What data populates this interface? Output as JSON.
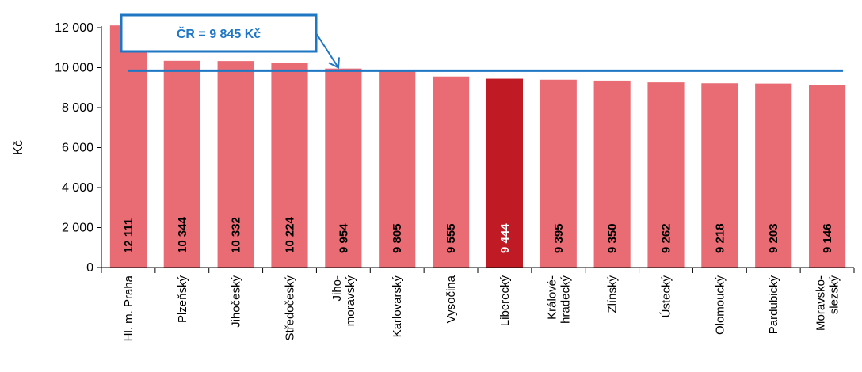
{
  "chart_data": {
    "type": "bar",
    "ylabel": "Kč",
    "ylim": [
      0,
      12000
    ],
    "yticks": [
      0,
      2000,
      4000,
      6000,
      8000,
      10000,
      12000
    ],
    "ytick_labels": [
      "0",
      "2 000",
      "4 000",
      "6 000",
      "8 000",
      "10 000",
      "12 000"
    ],
    "categories": [
      [
        "Hl. m. Praha"
      ],
      [
        "Plzeňský"
      ],
      [
        "Jihočeský"
      ],
      [
        "Středočeský"
      ],
      [
        "Jiho-",
        "moravský"
      ],
      [
        "Karlovarský"
      ],
      [
        "Vysočina"
      ],
      [
        "Liberecký"
      ],
      [
        "Králové-",
        "hradecký"
      ],
      [
        "Zlínský"
      ],
      [
        "Ústecký"
      ],
      [
        "Olomoucký"
      ],
      [
        "Pardubický"
      ],
      [
        "Moravsko-",
        "slezský"
      ]
    ],
    "values": [
      12111,
      10344,
      10332,
      10224,
      9954,
      9805,
      9555,
      9444,
      9395,
      9350,
      9262,
      9218,
      9203,
      9146
    ],
    "value_labels": [
      "12 111",
      "10 344",
      "10 332",
      "10 224",
      "9 954",
      "9 805",
      "9 555",
      "9 444",
      "9 395",
      "9 350",
      "9 262",
      "9 218",
      "9 203",
      "9 146"
    ],
    "highlight_index": 7,
    "reference": {
      "value": 9845,
      "label": "ČR = 9 845 Kč"
    },
    "grid": false,
    "colors": {
      "bar": "#e96b73",
      "highlight": "#c01b24",
      "reference": "#1f77c4",
      "label_dark": "#000000",
      "label_light": "#ffffff",
      "axis": "#000000"
    }
  }
}
